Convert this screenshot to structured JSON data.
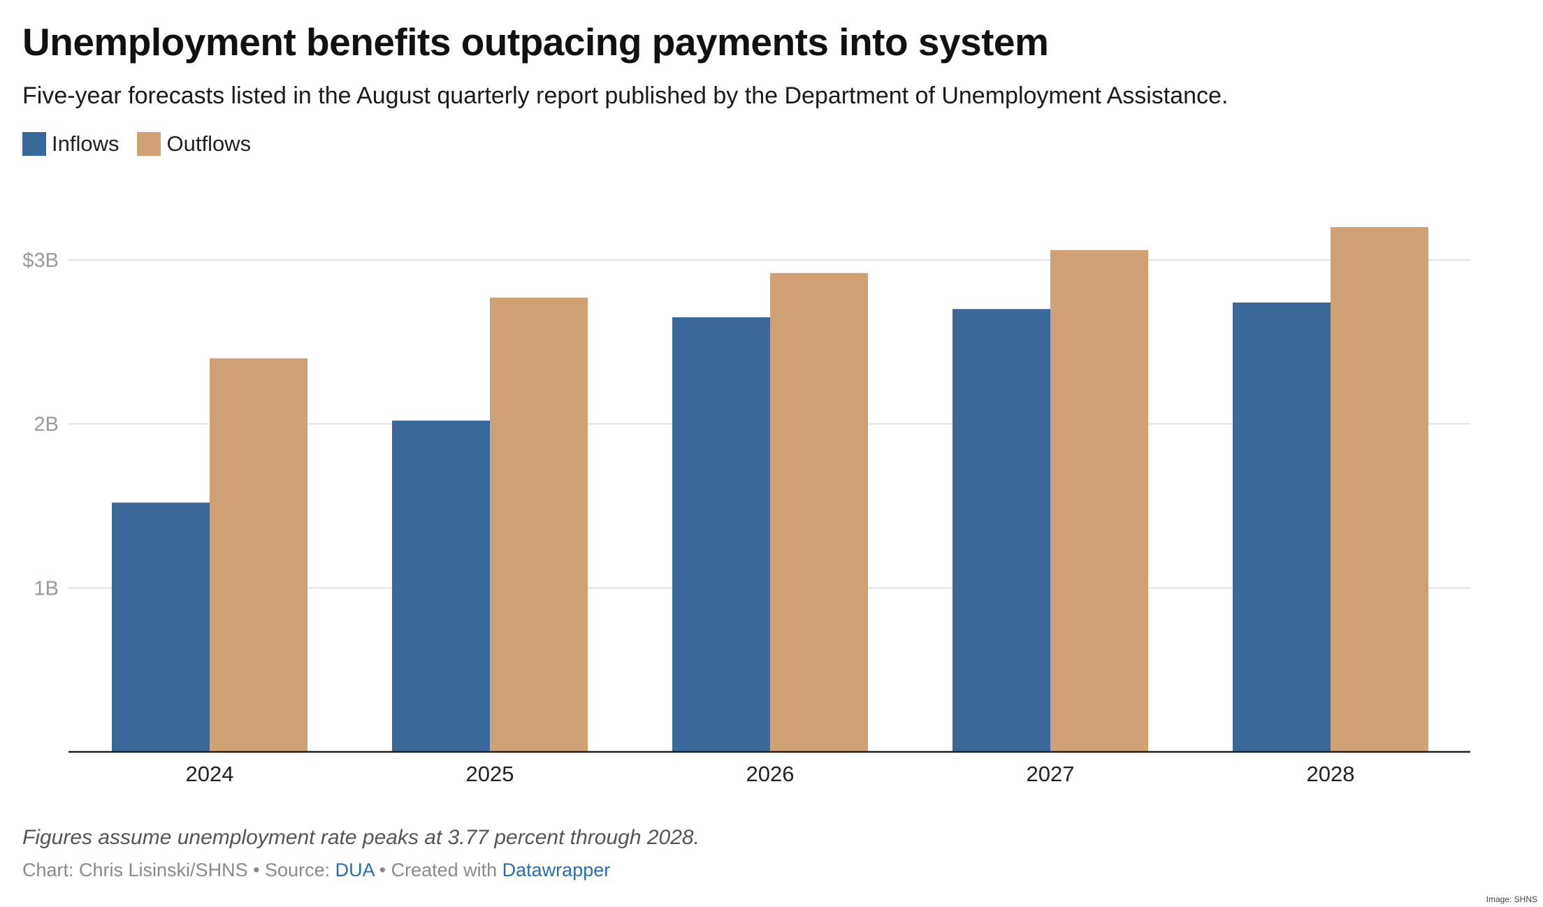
{
  "title": "Unemployment benefits outpacing payments into system",
  "subtitle": "Five-year forecasts listed in the August quarterly report published by the Department of Unemployment Assistance.",
  "legend": [
    {
      "label": "Inflows",
      "color": "#3a6898"
    },
    {
      "label": "Outflows",
      "color": "#cfa174"
    }
  ],
  "chart_data": {
    "type": "bar",
    "categories": [
      "2024",
      "2025",
      "2026",
      "2027",
      "2028"
    ],
    "series": [
      {
        "name": "Inflows",
        "color": "#3a6898",
        "values": [
          1.52,
          2.02,
          2.65,
          2.7,
          2.74
        ]
      },
      {
        "name": "Outflows",
        "color": "#cfa174",
        "values": [
          2.4,
          2.77,
          2.92,
          3.06,
          3.2
        ]
      }
    ],
    "ylim": [
      0,
      3.3
    ],
    "yticks": [
      {
        "value": 1,
        "label": "1B"
      },
      {
        "value": 2,
        "label": "2B"
      },
      {
        "value": 3,
        "label": "$3B"
      }
    ],
    "grid": true,
    "legend_position": "top-left"
  },
  "notes": "Figures assume unemployment rate peaks at 3.77 percent through 2028.",
  "credits": {
    "chart_by": "Chart: Chris Lisinski/SHNS",
    "sep1": " • Source: ",
    "source": "DUA",
    "sep2": " • Created with ",
    "tool": "Datawrapper"
  },
  "image_credit": "Image: SHNS"
}
